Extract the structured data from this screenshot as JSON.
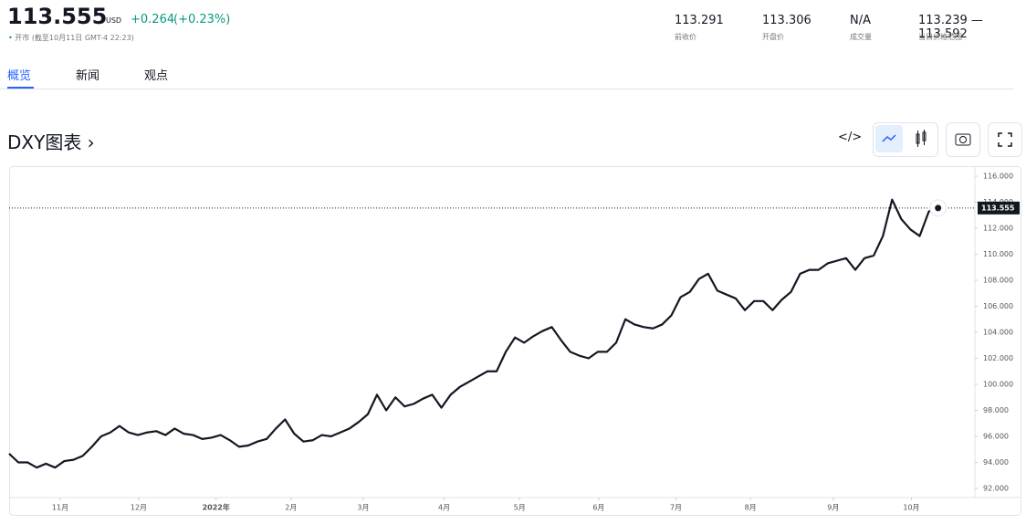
{
  "quote": {
    "price": "113.555",
    "currency": "USD",
    "change": "+0.264",
    "change_pct": "(+0.23%)",
    "status": "开市",
    "as_of": "(截至10月11日 GMT-4 22:23)",
    "stats": [
      {
        "value": "113.291",
        "label": "前收价"
      },
      {
        "value": "113.306",
        "label": "开盘价"
      },
      {
        "value": "N/A",
        "label": "成交量"
      },
      {
        "value": "113.239 — 113.592",
        "label": "当日价格范围"
      }
    ]
  },
  "tabs": [
    "概览",
    "新闻",
    "观点"
  ],
  "chart_heading": "DXY图表 ›",
  "chart_data": {
    "type": "line",
    "color": "#131722",
    "values": [
      94.67,
      94.0,
      94.0,
      93.6,
      93.9,
      93.6,
      94.1,
      94.2,
      94.5,
      95.2,
      96.0,
      96.3,
      96.8,
      96.3,
      96.1,
      96.3,
      96.4,
      96.1,
      96.6,
      96.2,
      96.1,
      95.8,
      95.9,
      96.1,
      95.7,
      95.2,
      95.3,
      95.6,
      95.8,
      96.6,
      97.3,
      96.2,
      95.6,
      95.7,
      96.1,
      96.0,
      96.3,
      96.6,
      97.1,
      97.7,
      99.2,
      98.0,
      99.0,
      98.3,
      98.5,
      98.9,
      99.2,
      98.2,
      99.2,
      99.8,
      100.2,
      100.6,
      101.0,
      101.0,
      102.5,
      103.6,
      103.2,
      103.7,
      104.1,
      104.4,
      103.4,
      102.5,
      102.2,
      102.0,
      102.5,
      102.5,
      103.2,
      105.0,
      104.6,
      104.4,
      104.3,
      104.6,
      105.3,
      106.7,
      107.1,
      108.1,
      108.5,
      107.2,
      106.9,
      106.6,
      105.7,
      106.4,
      106.4,
      105.7,
      106.5,
      107.1,
      108.5,
      108.8,
      108.8,
      109.3,
      109.5,
      109.7,
      108.8,
      109.7,
      109.9,
      111.4,
      114.2,
      112.7,
      111.9,
      111.4,
      113.3,
      113.555
    ],
    "xlim": [
      0,
      105
    ],
    "xticks": [
      {
        "value": 5.56,
        "label": "11月"
      },
      {
        "value": 14.09,
        "label": "12月"
      },
      {
        "value": 22.5,
        "label": "2022年"
      },
      {
        "value": 30.65,
        "label": "2月"
      },
      {
        "value": 38.5,
        "label": "3月"
      },
      {
        "value": 47.3,
        "label": "4月"
      },
      {
        "value": 55.5,
        "label": "5月"
      },
      {
        "value": 64.1,
        "label": "6月"
      },
      {
        "value": 72.5,
        "label": "7月"
      },
      {
        "value": 80.6,
        "label": "8月"
      },
      {
        "value": 89.6,
        "label": "9月"
      },
      {
        "value": 98.1,
        "label": "10月"
      }
    ],
    "ylim": [
      92,
      116
    ],
    "yticks": [
      {
        "value": 92,
        "label": "92.000"
      },
      {
        "value": 94,
        "label": "94.000"
      },
      {
        "value": 96,
        "label": "96.000"
      },
      {
        "value": 98,
        "label": "98.000"
      },
      {
        "value": 100,
        "label": "100.000"
      },
      {
        "value": 102,
        "label": "102.000"
      },
      {
        "value": 104,
        "label": "104.000"
      },
      {
        "value": 106,
        "label": "106.000"
      },
      {
        "value": 108,
        "label": "108.000"
      },
      {
        "value": 110,
        "label": "110.000"
      },
      {
        "value": 112,
        "label": "112.000"
      },
      {
        "value": 114,
        "label": "114.000"
      },
      {
        "value": 116,
        "label": "116.000"
      }
    ],
    "last_label": "113.555"
  }
}
